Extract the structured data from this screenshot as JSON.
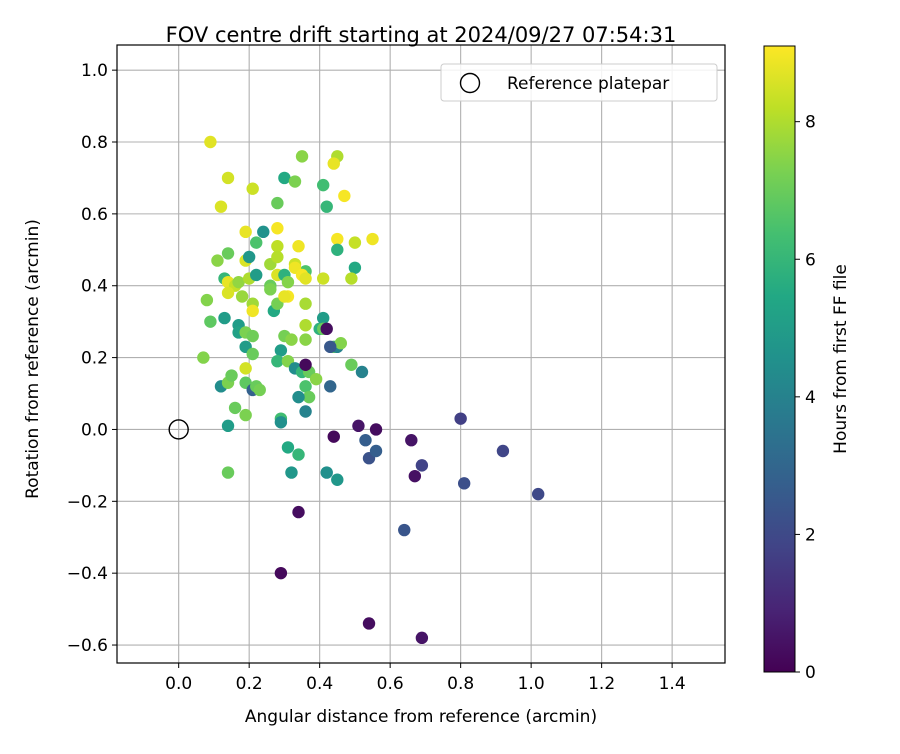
{
  "chart_data": {
    "type": "scatter",
    "title": "FOV centre drift starting at 2024/09/27 07:54:31",
    "xlabel": "Angular distance from reference (arcmin)",
    "ylabel": "Rotation from reference (arcmin)",
    "xlim": [
      -0.175,
      1.55
    ],
    "ylim": [
      -0.65,
      1.07
    ],
    "xticks": [
      "0.0",
      "0.2",
      "0.4",
      "0.6",
      "0.8",
      "1.0",
      "1.2",
      "1.4"
    ],
    "yticks": [
      "−0.6",
      "−0.4",
      "−0.2",
      "0.0",
      "0.2",
      "0.4",
      "0.6",
      "0.8",
      "1.0"
    ],
    "grid": true,
    "legend": {
      "position": "upper right",
      "entries": [
        "Reference platepar"
      ]
    },
    "colorbar": {
      "label": "Hours from first FF file",
      "range": [
        0,
        9.1
      ],
      "ticks": [
        "0",
        "2",
        "4",
        "6",
        "8"
      ],
      "colormap": "viridis"
    },
    "reference_point": {
      "x": 0.0,
      "y": 0.0
    },
    "points": [
      {
        "x": 0.09,
        "y": 0.8,
        "h": 8.7
      },
      {
        "x": 0.14,
        "y": 0.7,
        "h": 8.5
      },
      {
        "x": 0.12,
        "y": 0.62,
        "h": 8.6
      },
      {
        "x": 0.21,
        "y": 0.67,
        "h": 8.4
      },
      {
        "x": 0.35,
        "y": 0.76,
        "h": 7.5
      },
      {
        "x": 0.45,
        "y": 0.76,
        "h": 8.0
      },
      {
        "x": 0.44,
        "y": 0.74,
        "h": 8.8
      },
      {
        "x": 0.3,
        "y": 0.7,
        "h": 5.5
      },
      {
        "x": 0.33,
        "y": 0.69,
        "h": 7.3
      },
      {
        "x": 0.41,
        "y": 0.68,
        "h": 6.3
      },
      {
        "x": 0.28,
        "y": 0.63,
        "h": 7.0
      },
      {
        "x": 0.42,
        "y": 0.62,
        "h": 6.0
      },
      {
        "x": 0.47,
        "y": 0.65,
        "h": 9.0
      },
      {
        "x": 0.24,
        "y": 0.55,
        "h": 4.6
      },
      {
        "x": 0.28,
        "y": 0.56,
        "h": 9.0
      },
      {
        "x": 0.22,
        "y": 0.52,
        "h": 6.5
      },
      {
        "x": 0.19,
        "y": 0.55,
        "h": 8.8
      },
      {
        "x": 0.28,
        "y": 0.51,
        "h": 8.2
      },
      {
        "x": 0.34,
        "y": 0.51,
        "h": 8.9
      },
      {
        "x": 0.45,
        "y": 0.53,
        "h": 9.0
      },
      {
        "x": 0.5,
        "y": 0.52,
        "h": 8.3
      },
      {
        "x": 0.55,
        "y": 0.53,
        "h": 8.9
      },
      {
        "x": 0.45,
        "y": 0.5,
        "h": 5.8
      },
      {
        "x": 0.11,
        "y": 0.47,
        "h": 7.5
      },
      {
        "x": 0.14,
        "y": 0.49,
        "h": 7.0
      },
      {
        "x": 0.19,
        "y": 0.47,
        "h": 8.6
      },
      {
        "x": 0.2,
        "y": 0.48,
        "h": 4.8
      },
      {
        "x": 0.26,
        "y": 0.46,
        "h": 7.8
      },
      {
        "x": 0.28,
        "y": 0.48,
        "h": 8.1
      },
      {
        "x": 0.33,
        "y": 0.46,
        "h": 8.4
      },
      {
        "x": 0.36,
        "y": 0.44,
        "h": 6.5
      },
      {
        "x": 0.41,
        "y": 0.42,
        "h": 8.4
      },
      {
        "x": 0.5,
        "y": 0.45,
        "h": 5.5
      },
      {
        "x": 0.49,
        "y": 0.42,
        "h": 8.1
      },
      {
        "x": 0.13,
        "y": 0.42,
        "h": 6.0
      },
      {
        "x": 0.14,
        "y": 0.41,
        "h": 8.8
      },
      {
        "x": 0.16,
        "y": 0.4,
        "h": 8.3
      },
      {
        "x": 0.14,
        "y": 0.38,
        "h": 8.6
      },
      {
        "x": 0.18,
        "y": 0.37,
        "h": 7.7
      },
      {
        "x": 0.17,
        "y": 0.41,
        "h": 7.6
      },
      {
        "x": 0.2,
        "y": 0.42,
        "h": 8.0
      },
      {
        "x": 0.22,
        "y": 0.43,
        "h": 5.0
      },
      {
        "x": 0.26,
        "y": 0.4,
        "h": 7.0
      },
      {
        "x": 0.26,
        "y": 0.39,
        "h": 7.3
      },
      {
        "x": 0.28,
        "y": 0.43,
        "h": 8.6
      },
      {
        "x": 0.3,
        "y": 0.43,
        "h": 5.8
      },
      {
        "x": 0.31,
        "y": 0.41,
        "h": 7.4
      },
      {
        "x": 0.31,
        "y": 0.37,
        "h": 9.0
      },
      {
        "x": 0.33,
        "y": 0.45,
        "h": 8.9
      },
      {
        "x": 0.35,
        "y": 0.43,
        "h": 9.0
      },
      {
        "x": 0.36,
        "y": 0.42,
        "h": 8.7
      },
      {
        "x": 0.08,
        "y": 0.36,
        "h": 7.4
      },
      {
        "x": 0.21,
        "y": 0.35,
        "h": 7.8
      },
      {
        "x": 0.21,
        "y": 0.33,
        "h": 8.9
      },
      {
        "x": 0.27,
        "y": 0.33,
        "h": 5.5
      },
      {
        "x": 0.28,
        "y": 0.35,
        "h": 7.2
      },
      {
        "x": 0.36,
        "y": 0.35,
        "h": 7.9
      },
      {
        "x": 0.09,
        "y": 0.3,
        "h": 6.8
      },
      {
        "x": 0.13,
        "y": 0.31,
        "h": 5.0
      },
      {
        "x": 0.17,
        "y": 0.29,
        "h": 5.0
      },
      {
        "x": 0.17,
        "y": 0.27,
        "h": 5.2
      },
      {
        "x": 0.19,
        "y": 0.27,
        "h": 7.3
      },
      {
        "x": 0.21,
        "y": 0.26,
        "h": 7.1
      },
      {
        "x": 0.3,
        "y": 0.26,
        "h": 7.2
      },
      {
        "x": 0.32,
        "y": 0.25,
        "h": 7.5
      },
      {
        "x": 0.36,
        "y": 0.25,
        "h": 7.5
      },
      {
        "x": 0.36,
        "y": 0.29,
        "h": 8.0
      },
      {
        "x": 0.4,
        "y": 0.28,
        "h": 5.8
      },
      {
        "x": 0.41,
        "y": 0.31,
        "h": 5.0
      },
      {
        "x": 0.41,
        "y": 0.28,
        "h": 7.0
      },
      {
        "x": 0.44,
        "y": 0.23,
        "h": 6.8
      },
      {
        "x": 0.45,
        "y": 0.23,
        "h": 4.0
      },
      {
        "x": 0.46,
        "y": 0.24,
        "h": 7.4
      },
      {
        "x": 0.07,
        "y": 0.2,
        "h": 7.4
      },
      {
        "x": 0.19,
        "y": 0.23,
        "h": 5.0
      },
      {
        "x": 0.21,
        "y": 0.21,
        "h": 7.0
      },
      {
        "x": 0.29,
        "y": 0.22,
        "h": 5.0
      },
      {
        "x": 0.28,
        "y": 0.19,
        "h": 6.0
      },
      {
        "x": 0.31,
        "y": 0.19,
        "h": 7.4
      },
      {
        "x": 0.33,
        "y": 0.17,
        "h": 4.4
      },
      {
        "x": 0.35,
        "y": 0.16,
        "h": 6.0
      },
      {
        "x": 0.37,
        "y": 0.16,
        "h": 7.0
      },
      {
        "x": 0.39,
        "y": 0.14,
        "h": 7.5
      },
      {
        "x": 0.49,
        "y": 0.18,
        "h": 7.0
      },
      {
        "x": 0.52,
        "y": 0.16,
        "h": 4.0
      },
      {
        "x": 0.12,
        "y": 0.12,
        "h": 4.4
      },
      {
        "x": 0.14,
        "y": 0.13,
        "h": 7.3
      },
      {
        "x": 0.15,
        "y": 0.15,
        "h": 7.0
      },
      {
        "x": 0.19,
        "y": 0.13,
        "h": 6.8
      },
      {
        "x": 0.21,
        "y": 0.11,
        "h": 2.8
      },
      {
        "x": 0.22,
        "y": 0.12,
        "h": 7.0
      },
      {
        "x": 0.23,
        "y": 0.11,
        "h": 7.2
      },
      {
        "x": 0.19,
        "y": 0.17,
        "h": 8.5
      },
      {
        "x": 0.36,
        "y": 0.12,
        "h": 6.5
      },
      {
        "x": 0.37,
        "y": 0.09,
        "h": 7.0
      },
      {
        "x": 0.34,
        "y": 0.09,
        "h": 4.4
      },
      {
        "x": 0.43,
        "y": 0.12,
        "h": 3.0
      },
      {
        "x": 0.16,
        "y": 0.06,
        "h": 7.0
      },
      {
        "x": 0.19,
        "y": 0.04,
        "h": 7.3
      },
      {
        "x": 0.36,
        "y": 0.05,
        "h": 4.0
      },
      {
        "x": 0.29,
        "y": 0.03,
        "h": 6.3
      },
      {
        "x": 0.29,
        "y": 0.02,
        "h": 4.5
      },
      {
        "x": 0.14,
        "y": 0.01,
        "h": 5.0
      },
      {
        "x": 0.31,
        "y": -0.05,
        "h": 5.5
      },
      {
        "x": 0.34,
        "y": -0.07,
        "h": 6.0
      },
      {
        "x": 0.32,
        "y": -0.12,
        "h": 4.8
      },
      {
        "x": 0.42,
        "y": -0.12,
        "h": 4.5
      },
      {
        "x": 0.45,
        "y": -0.14,
        "h": 4.8
      },
      {
        "x": 0.14,
        "y": -0.12,
        "h": 7.0
      },
      {
        "x": 0.44,
        "y": -0.02,
        "h": 0.2
      },
      {
        "x": 0.51,
        "y": 0.01,
        "h": 0.5
      },
      {
        "x": 0.53,
        "y": -0.03,
        "h": 2.7
      },
      {
        "x": 0.56,
        "y": 0.0,
        "h": 0.3
      },
      {
        "x": 0.54,
        "y": -0.08,
        "h": 2.3
      },
      {
        "x": 0.56,
        "y": -0.06,
        "h": 2.7
      },
      {
        "x": 0.66,
        "y": -0.03,
        "h": 0.5
      },
      {
        "x": 0.67,
        "y": -0.13,
        "h": 0.4
      },
      {
        "x": 0.69,
        "y": -0.1,
        "h": 1.8
      },
      {
        "x": 0.8,
        "y": 0.03,
        "h": 1.7
      },
      {
        "x": 0.81,
        "y": -0.15,
        "h": 2.2
      },
      {
        "x": 0.92,
        "y": -0.06,
        "h": 1.9
      },
      {
        "x": 1.02,
        "y": -0.18,
        "h": 2.0
      },
      {
        "x": 0.64,
        "y": -0.28,
        "h": 2.4
      },
      {
        "x": 0.34,
        "y": -0.23,
        "h": 0.3
      },
      {
        "x": 0.29,
        "y": -0.4,
        "h": 0.2
      },
      {
        "x": 0.54,
        "y": -0.54,
        "h": 0.3
      },
      {
        "x": 0.69,
        "y": -0.58,
        "h": 0.5
      },
      {
        "x": 0.36,
        "y": 0.18,
        "h": 0.2
      },
      {
        "x": 0.43,
        "y": 0.23,
        "h": 2.5
      },
      {
        "x": 0.3,
        "y": 0.37,
        "h": 8.8
      },
      {
        "x": 0.42,
        "y": 0.28,
        "h": 0.3
      }
    ]
  }
}
